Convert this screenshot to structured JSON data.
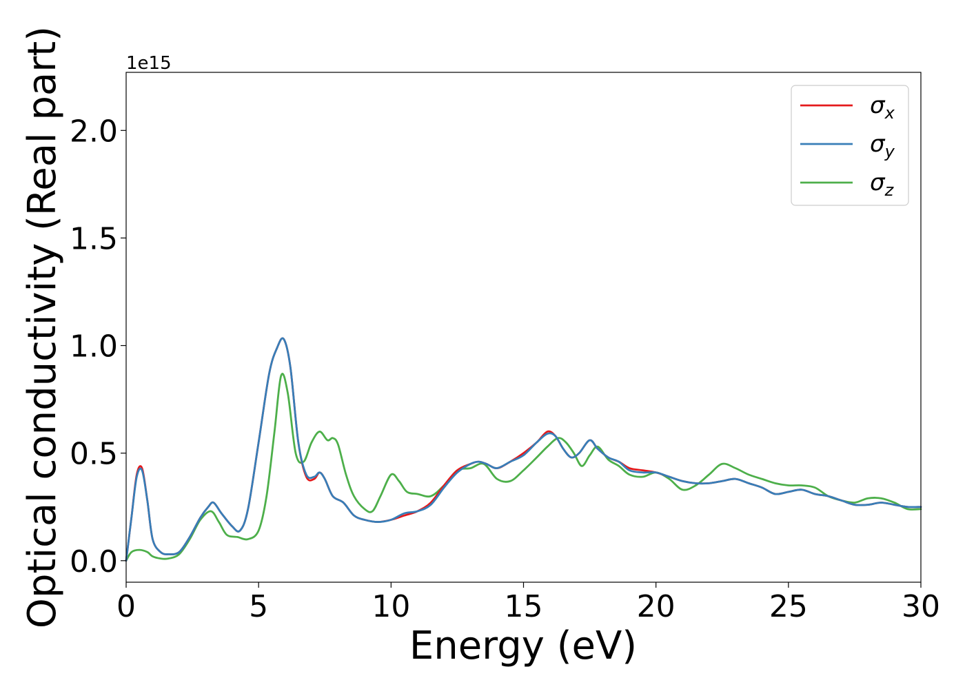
{
  "chart_data": {
    "type": "line",
    "xlabel": "Energy (eV)",
    "ylabel": "Optical conductivity (Real part)",
    "y_offset_label": "1e15",
    "xlim": [
      0,
      30
    ],
    "ylim": [
      -0.1,
      2.27
    ],
    "x_ticks": [
      0,
      5,
      10,
      15,
      20,
      25,
      30
    ],
    "x_tick_labels": [
      "0",
      "5",
      "10",
      "15",
      "20",
      "25",
      "30"
    ],
    "y_ticks": [
      0.0,
      0.5,
      1.0,
      1.5,
      2.0
    ],
    "y_tick_labels": [
      "0.0",
      "0.5",
      "1.0",
      "1.5",
      "2.0"
    ],
    "grid": false,
    "legend_position": "top-right",
    "series": [
      {
        "name": "σx",
        "symbol": "σ",
        "subscript": "x",
        "color": "#e41a1c",
        "x": [
          0,
          0.2,
          0.4,
          0.6,
          0.8,
          1.0,
          1.3,
          1.6,
          2.0,
          2.4,
          2.8,
          3.1,
          3.3,
          3.6,
          4.0,
          4.3,
          4.6,
          5.0,
          5.4,
          5.7,
          5.95,
          6.2,
          6.5,
          6.8,
          7.1,
          7.3,
          7.5,
          7.8,
          8.2,
          8.6,
          9.0,
          9.5,
          10.0,
          10.5,
          11.0,
          11.5,
          12.0,
          12.5,
          13.0,
          13.3,
          13.6,
          14.0,
          14.5,
          15.0,
          15.5,
          15.9,
          16.2,
          16.5,
          16.8,
          17.1,
          17.5,
          17.8,
          18.2,
          18.6,
          19.0,
          19.5,
          20.0,
          20.5,
          21.0,
          21.5,
          22.0,
          22.5,
          23.0,
          23.5,
          24.0,
          24.5,
          25.0,
          25.5,
          26.0,
          26.5,
          27.0,
          27.5,
          28.0,
          28.5,
          29.0,
          29.5,
          30.0
        ],
        "y": [
          0.0,
          0.2,
          0.4,
          0.43,
          0.28,
          0.1,
          0.04,
          0.03,
          0.04,
          0.11,
          0.2,
          0.25,
          0.27,
          0.22,
          0.16,
          0.14,
          0.24,
          0.55,
          0.87,
          0.99,
          1.03,
          0.9,
          0.55,
          0.39,
          0.38,
          0.41,
          0.38,
          0.3,
          0.27,
          0.21,
          0.19,
          0.18,
          0.19,
          0.21,
          0.23,
          0.27,
          0.35,
          0.42,
          0.45,
          0.46,
          0.45,
          0.43,
          0.46,
          0.5,
          0.55,
          0.6,
          0.58,
          0.52,
          0.48,
          0.5,
          0.56,
          0.52,
          0.48,
          0.46,
          0.43,
          0.42,
          0.41,
          0.39,
          0.37,
          0.36,
          0.36,
          0.37,
          0.38,
          0.36,
          0.34,
          0.31,
          0.32,
          0.33,
          0.31,
          0.3,
          0.28,
          0.26,
          0.26,
          0.27,
          0.26,
          0.25,
          0.25
        ]
      },
      {
        "name": "σy",
        "symbol": "σ",
        "subscript": "y",
        "color": "#377eb8",
        "x": [
          0,
          0.2,
          0.4,
          0.6,
          0.8,
          1.0,
          1.3,
          1.6,
          2.0,
          2.4,
          2.8,
          3.1,
          3.3,
          3.6,
          4.0,
          4.3,
          4.6,
          5.0,
          5.4,
          5.7,
          5.95,
          6.2,
          6.5,
          6.8,
          7.1,
          7.3,
          7.5,
          7.8,
          8.2,
          8.6,
          9.0,
          9.5,
          10.0,
          10.5,
          11.0,
          11.5,
          12.0,
          12.5,
          13.0,
          13.3,
          13.6,
          14.0,
          14.5,
          15.0,
          15.5,
          15.9,
          16.2,
          16.5,
          16.8,
          17.1,
          17.5,
          17.8,
          18.2,
          18.6,
          19.0,
          19.5,
          20.0,
          20.5,
          21.0,
          21.5,
          22.0,
          22.5,
          23.0,
          23.5,
          24.0,
          24.5,
          25.0,
          25.5,
          26.0,
          26.5,
          27.0,
          27.5,
          28.0,
          28.5,
          29.0,
          29.5,
          30.0
        ],
        "y": [
          0.0,
          0.2,
          0.39,
          0.42,
          0.28,
          0.1,
          0.04,
          0.03,
          0.04,
          0.11,
          0.2,
          0.25,
          0.27,
          0.22,
          0.16,
          0.14,
          0.24,
          0.55,
          0.87,
          0.99,
          1.03,
          0.9,
          0.55,
          0.4,
          0.39,
          0.41,
          0.38,
          0.3,
          0.27,
          0.21,
          0.19,
          0.18,
          0.19,
          0.22,
          0.23,
          0.26,
          0.34,
          0.41,
          0.45,
          0.46,
          0.45,
          0.43,
          0.46,
          0.49,
          0.55,
          0.59,
          0.58,
          0.52,
          0.48,
          0.5,
          0.56,
          0.52,
          0.48,
          0.46,
          0.42,
          0.41,
          0.41,
          0.39,
          0.37,
          0.36,
          0.36,
          0.37,
          0.38,
          0.36,
          0.34,
          0.31,
          0.32,
          0.33,
          0.31,
          0.3,
          0.28,
          0.26,
          0.26,
          0.27,
          0.26,
          0.25,
          0.25
        ]
      },
      {
        "name": "σz",
        "symbol": "σ",
        "subscript": "z",
        "color": "#4daf4a",
        "x": [
          0,
          0.2,
          0.5,
          0.8,
          1.0,
          1.3,
          1.6,
          2.0,
          2.4,
          2.8,
          3.2,
          3.5,
          3.8,
          4.2,
          4.6,
          5.0,
          5.3,
          5.6,
          5.85,
          6.1,
          6.4,
          6.7,
          7.0,
          7.3,
          7.6,
          7.8,
          8.0,
          8.3,
          8.6,
          9.0,
          9.3,
          9.6,
          10.0,
          10.3,
          10.6,
          11.0,
          11.5,
          12.0,
          12.5,
          13.0,
          13.5,
          14.0,
          14.5,
          15.0,
          15.5,
          15.9,
          16.3,
          16.6,
          16.9,
          17.2,
          17.5,
          17.8,
          18.2,
          18.6,
          19.0,
          19.5,
          20.0,
          20.5,
          21.0,
          21.5,
          22.0,
          22.5,
          23.0,
          23.5,
          24.0,
          24.5,
          25.0,
          25.5,
          26.0,
          26.5,
          27.0,
          27.5,
          28.0,
          28.5,
          29.0,
          29.5,
          30.0
        ],
        "y": [
          0.0,
          0.04,
          0.05,
          0.04,
          0.02,
          0.01,
          0.01,
          0.03,
          0.1,
          0.19,
          0.23,
          0.18,
          0.12,
          0.11,
          0.1,
          0.14,
          0.3,
          0.6,
          0.86,
          0.78,
          0.5,
          0.46,
          0.55,
          0.6,
          0.56,
          0.57,
          0.54,
          0.4,
          0.3,
          0.24,
          0.23,
          0.3,
          0.4,
          0.37,
          0.32,
          0.31,
          0.3,
          0.35,
          0.42,
          0.43,
          0.45,
          0.38,
          0.37,
          0.42,
          0.48,
          0.53,
          0.57,
          0.55,
          0.5,
          0.44,
          0.49,
          0.53,
          0.47,
          0.44,
          0.4,
          0.39,
          0.41,
          0.38,
          0.33,
          0.35,
          0.4,
          0.45,
          0.43,
          0.4,
          0.38,
          0.36,
          0.35,
          0.35,
          0.34,
          0.3,
          0.28,
          0.27,
          0.29,
          0.29,
          0.27,
          0.24,
          0.24
        ]
      }
    ]
  }
}
